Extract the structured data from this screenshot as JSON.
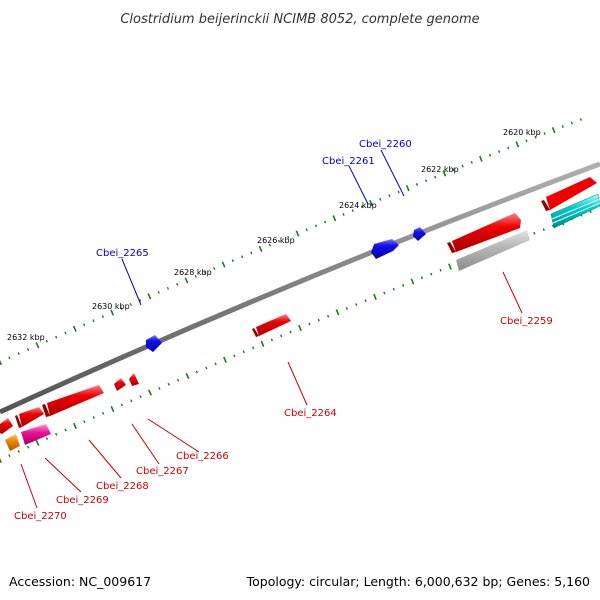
{
  "title": "Clostridium beijerinckii NCIMB 8052, complete genome",
  "footer": {
    "accession": "Accession: NC_009617",
    "summary": "Topology: circular; Length: 6,000,632 bp; Genes: 5,160"
  },
  "colors": {
    "backbone": "#7f7f7f",
    "tick": "#1e7a1e",
    "forward_label": "#0000cc",
    "reverse_label": "#cc0000",
    "red": "#ee0000",
    "blue": "#1111ee",
    "gray": "#b8b8b8",
    "cyan": "#00cccc",
    "pink": "#ee1199",
    "orange": "#ee8800"
  },
  "ticks": [
    {
      "label": "2620 kbp"
    },
    {
      "label": "2622 kbp"
    },
    {
      "label": "2624 kbp"
    },
    {
      "label": "2626 kbp"
    },
    {
      "label": "2628 kbp"
    },
    {
      "label": "2630 kbp"
    },
    {
      "label": "2632 kbp"
    }
  ],
  "gene_labels": [
    {
      "name": "Cbei_2260",
      "strand": "forward"
    },
    {
      "name": "Cbei_2261",
      "strand": "forward"
    },
    {
      "name": "Cbei_2265",
      "strand": "forward"
    },
    {
      "name": "Cbei_2259",
      "strand": "reverse"
    },
    {
      "name": "Cbei_2264",
      "strand": "reverse"
    },
    {
      "name": "Cbei_2266",
      "strand": "reverse"
    },
    {
      "name": "Cbei_2267",
      "strand": "reverse"
    },
    {
      "name": "Cbei_2268",
      "strand": "reverse"
    },
    {
      "name": "Cbei_2269",
      "strand": "reverse"
    },
    {
      "name": "Cbei_2270",
      "strand": "reverse"
    }
  ]
}
